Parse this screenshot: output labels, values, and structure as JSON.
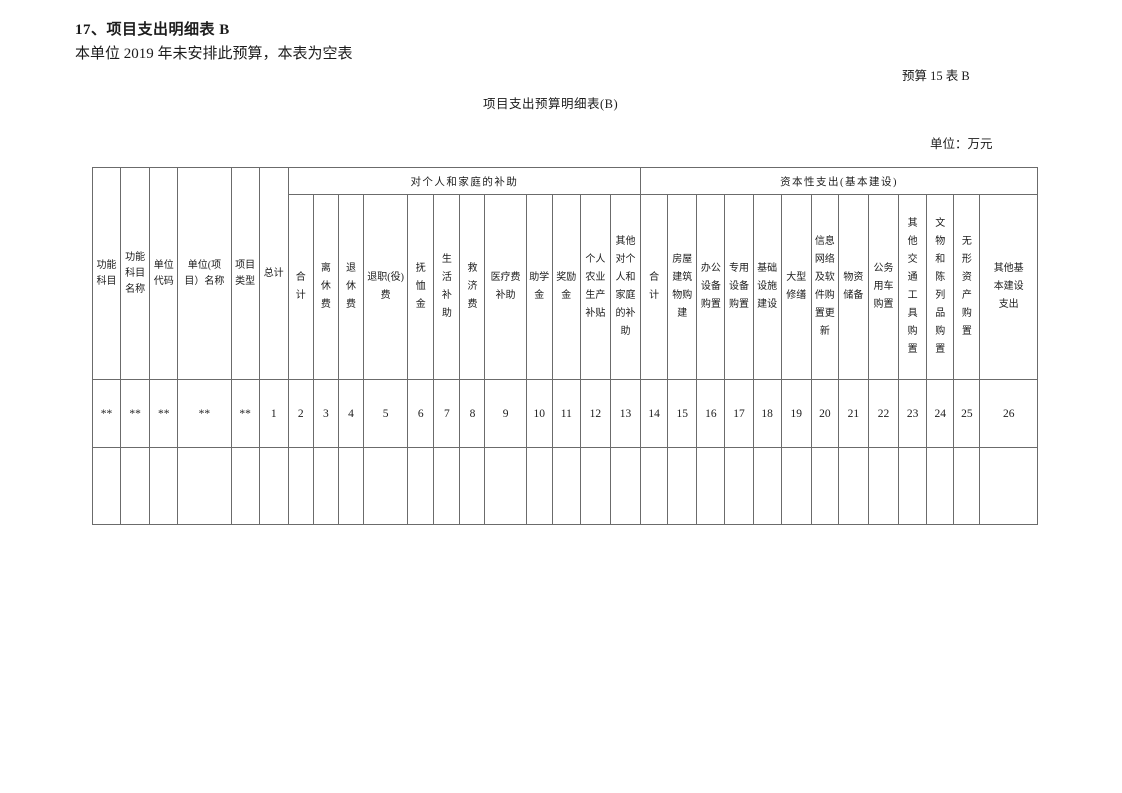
{
  "page": {
    "doc_title": "17、项目支出明细表 B",
    "doc_subtitle": "本单位 2019 年未安排此预算，本表为空表",
    "form_code": "预算 15 表 B",
    "table_title": "项目支出预算明细表(B)",
    "unit_note": "单位：万元"
  },
  "table": {
    "fixed_columns": [
      "功能\n科目",
      "功能\n科目\n名称",
      "单位\n代码",
      "单位(项\n目）名称",
      "项目\n类型",
      "总计"
    ],
    "groups": [
      {
        "label": "对个人和家庭的补助",
        "columns": [
          "合\n计",
          "离\n休\n费",
          "退\n休\n费",
          "退职(役)\n费",
          "抚\n恤\n金",
          "生\n活\n补\n助",
          "救\n济\n费",
          "医疗费\n补助",
          "助学\n金",
          "奖励\n金",
          "个人\n农业\n生产\n补贴",
          "其他\n对个\n人和\n家庭\n的补\n助"
        ]
      },
      {
        "label": "资本性支出(基本建设)",
        "columns": [
          "合\n计",
          "房屋\n建筑\n物购\n建",
          "办公\n设备\n购置",
          "专用\n设备\n购置",
          "基础\n设施\n建设",
          "大型\n修缮",
          "信息\n网络\n及软\n件购\n置更\n新",
          "物资\n储备",
          "公务\n用车\n购置",
          "其\n他\n交\n通\n工\n具\n购\n置",
          "文\n物\n和\n陈\n列\n品\n购\n置",
          "无\n形\n资\n产\n购\n置",
          "其他基\n本建设\n支出"
        ]
      }
    ],
    "rows": [
      [
        "**",
        "**",
        "**",
        "**",
        "**",
        "1",
        "2",
        "3",
        "4",
        "5",
        "6",
        "7",
        "8",
        "9",
        "10",
        "11",
        "12",
        "13",
        "14",
        "15",
        "16",
        "17",
        "18",
        "19",
        "20",
        "21",
        "22",
        "23",
        "24",
        "25",
        "26"
      ],
      [
        "",
        "",
        "",
        "",
        "",
        "",
        "",
        "",
        "",
        "",
        "",
        "",
        "",
        "",
        "",
        "",
        "",
        "",
        "",
        "",
        "",
        "",
        "",
        "",
        "",
        "",
        "",
        "",
        "",
        "",
        ""
      ]
    ]
  }
}
